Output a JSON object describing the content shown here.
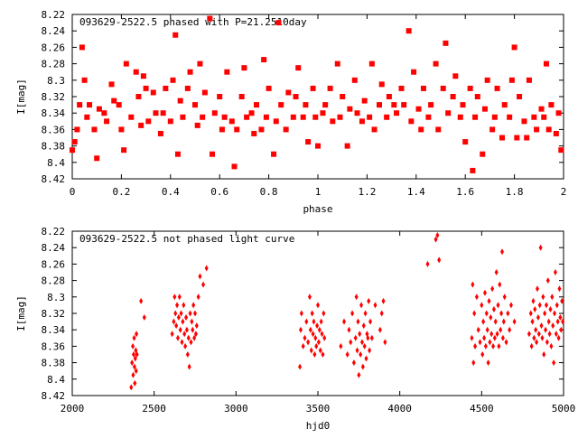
{
  "chart_data": [
    {
      "type": "scatter",
      "title": "093629-2522.5 phased with P=21.2510day",
      "xlabel": "phase",
      "ylabel": "I[mag]",
      "xlim": [
        0,
        2
      ],
      "ylim": [
        8.42,
        8.22
      ],
      "y_inverted": true,
      "xticks": [
        "0",
        "0.2",
        "0.4",
        "0.6",
        "0.8",
        "1",
        "1.2",
        "1.4",
        "1.6",
        "1.8",
        "2"
      ],
      "yticks": [
        "8.22",
        "8.24",
        "8.26",
        "8.28",
        "8.3",
        "8.32",
        "8.34",
        "8.36",
        "8.38",
        "8.4",
        "8.42"
      ],
      "marker": "filled-square",
      "color": "#ff0000",
      "points": [
        [
          0.0,
          8.385
        ],
        [
          0.01,
          8.375
        ],
        [
          0.02,
          8.36
        ],
        [
          0.03,
          8.33
        ],
        [
          0.04,
          8.26
        ],
        [
          0.05,
          8.3
        ],
        [
          0.06,
          8.345
        ],
        [
          0.07,
          8.33
        ],
        [
          0.09,
          8.36
        ],
        [
          0.1,
          8.395
        ],
        [
          0.11,
          8.335
        ],
        [
          0.13,
          8.34
        ],
        [
          0.14,
          8.35
        ],
        [
          0.16,
          8.305
        ],
        [
          0.17,
          8.325
        ],
        [
          0.19,
          8.33
        ],
        [
          0.2,
          8.36
        ],
        [
          0.21,
          8.385
        ],
        [
          0.22,
          8.28
        ],
        [
          0.24,
          8.345
        ],
        [
          0.26,
          8.29
        ],
        [
          0.27,
          8.32
        ],
        [
          0.28,
          8.355
        ],
        [
          0.29,
          8.295
        ],
        [
          0.3,
          8.31
        ],
        [
          0.31,
          8.35
        ],
        [
          0.33,
          8.315
        ],
        [
          0.34,
          8.34
        ],
        [
          0.36,
          8.365
        ],
        [
          0.37,
          8.34
        ],
        [
          0.38,
          8.31
        ],
        [
          0.4,
          8.35
        ],
        [
          0.41,
          8.3
        ],
        [
          0.42,
          8.245
        ],
        [
          0.43,
          8.39
        ],
        [
          0.44,
          8.325
        ],
        [
          0.45,
          8.345
        ],
        [
          0.47,
          8.31
        ],
        [
          0.48,
          8.29
        ],
        [
          0.5,
          8.33
        ],
        [
          0.51,
          8.355
        ],
        [
          0.52,
          8.28
        ],
        [
          0.53,
          8.345
        ],
        [
          0.54,
          8.315
        ],
        [
          0.56,
          8.225
        ],
        [
          0.57,
          8.39
        ],
        [
          0.58,
          8.34
        ],
        [
          0.6,
          8.32
        ],
        [
          0.61,
          8.36
        ],
        [
          0.62,
          8.345
        ],
        [
          0.63,
          8.29
        ],
        [
          0.65,
          8.35
        ],
        [
          0.66,
          8.405
        ],
        [
          0.67,
          8.36
        ],
        [
          0.69,
          8.32
        ],
        [
          0.7,
          8.285
        ],
        [
          0.71,
          8.345
        ],
        [
          0.73,
          8.34
        ],
        [
          0.74,
          8.365
        ],
        [
          0.75,
          8.33
        ],
        [
          0.77,
          8.36
        ],
        [
          0.78,
          8.275
        ],
        [
          0.79,
          8.345
        ],
        [
          0.8,
          8.31
        ],
        [
          0.82,
          8.39
        ],
        [
          0.83,
          8.35
        ],
        [
          0.84,
          8.23
        ],
        [
          0.85,
          8.33
        ],
        [
          0.87,
          8.36
        ],
        [
          0.88,
          8.315
        ],
        [
          0.9,
          8.345
        ],
        [
          0.91,
          8.32
        ],
        [
          0.92,
          8.285
        ],
        [
          0.94,
          8.345
        ],
        [
          0.95,
          8.33
        ],
        [
          0.96,
          8.375
        ],
        [
          0.98,
          8.31
        ],
        [
          0.99,
          8.345
        ],
        [
          1.0,
          8.38
        ],
        [
          1.02,
          8.34
        ],
        [
          1.03,
          8.33
        ],
        [
          1.05,
          8.31
        ],
        [
          1.06,
          8.35
        ],
        [
          1.08,
          8.28
        ],
        [
          1.09,
          8.345
        ],
        [
          1.1,
          8.32
        ],
        [
          1.12,
          8.38
        ],
        [
          1.13,
          8.335
        ],
        [
          1.15,
          8.3
        ],
        [
          1.16,
          8.34
        ],
        [
          1.18,
          8.35
        ],
        [
          1.19,
          8.325
        ],
        [
          1.21,
          8.345
        ],
        [
          1.22,
          8.28
        ],
        [
          1.23,
          8.36
        ],
        [
          1.25,
          8.33
        ],
        [
          1.26,
          8.305
        ],
        [
          1.28,
          8.345
        ],
        [
          1.29,
          8.32
        ],
        [
          1.31,
          8.33
        ],
        [
          1.32,
          8.34
        ],
        [
          1.34,
          8.31
        ],
        [
          1.35,
          8.33
        ],
        [
          1.37,
          8.24
        ],
        [
          1.38,
          8.35
        ],
        [
          1.39,
          8.29
        ],
        [
          1.41,
          8.335
        ],
        [
          1.42,
          8.36
        ],
        [
          1.43,
          8.31
        ],
        [
          1.45,
          8.345
        ],
        [
          1.46,
          8.33
        ],
        [
          1.48,
          8.28
        ],
        [
          1.49,
          8.36
        ],
        [
          1.51,
          8.31
        ],
        [
          1.52,
          8.255
        ],
        [
          1.53,
          8.34
        ],
        [
          1.55,
          8.32
        ],
        [
          1.56,
          8.295
        ],
        [
          1.58,
          8.345
        ],
        [
          1.59,
          8.33
        ],
        [
          1.6,
          8.375
        ],
        [
          1.62,
          8.31
        ],
        [
          1.63,
          8.41
        ],
        [
          1.64,
          8.345
        ],
        [
          1.65,
          8.32
        ],
        [
          1.67,
          8.39
        ],
        [
          1.68,
          8.335
        ],
        [
          1.69,
          8.3
        ],
        [
          1.71,
          8.36
        ],
        [
          1.72,
          8.345
        ],
        [
          1.73,
          8.31
        ],
        [
          1.75,
          8.37
        ],
        [
          1.76,
          8.33
        ],
        [
          1.78,
          8.345
        ],
        [
          1.79,
          8.3
        ],
        [
          1.8,
          8.26
        ],
        [
          1.81,
          8.37
        ],
        [
          1.82,
          8.32
        ],
        [
          1.84,
          8.35
        ],
        [
          1.85,
          8.37
        ],
        [
          1.86,
          8.3
        ],
        [
          1.88,
          8.345
        ],
        [
          1.89,
          8.36
        ],
        [
          1.91,
          8.335
        ],
        [
          1.92,
          8.345
        ],
        [
          1.93,
          8.28
        ],
        [
          1.94,
          8.36
        ],
        [
          1.95,
          8.33
        ],
        [
          1.97,
          8.365
        ],
        [
          1.98,
          8.34
        ],
        [
          1.99,
          8.385
        ]
      ]
    },
    {
      "type": "scatter",
      "title": "093629-2522.5 not phased light curve",
      "xlabel": "hjd0",
      "ylabel": "I[mag]",
      "xlim": [
        2000,
        5000
      ],
      "ylim": [
        8.42,
        8.22
      ],
      "y_inverted": true,
      "xticks": [
        "2000",
        "2500",
        "3000",
        "3500",
        "4000",
        "4500",
        "5000"
      ],
      "yticks": [
        "8.22",
        "8.24",
        "8.26",
        "8.28",
        "8.3",
        "8.32",
        "8.34",
        "8.36",
        "8.38",
        "8.4",
        "8.42"
      ],
      "marker": "diamond",
      "color": "#ff0000",
      "points": [
        [
          2360,
          8.41
        ],
        [
          2365,
          8.38
        ],
        [
          2370,
          8.36
        ],
        [
          2372,
          8.395
        ],
        [
          2375,
          8.37
        ],
        [
          2378,
          8.35
        ],
        [
          2380,
          8.385
        ],
        [
          2382,
          8.405
        ],
        [
          2385,
          8.375
        ],
        [
          2388,
          8.365
        ],
        [
          2390,
          8.39
        ],
        [
          2392,
          8.345
        ],
        [
          2395,
          8.37
        ],
        [
          2420,
          8.305
        ],
        [
          2440,
          8.325
        ],
        [
          2610,
          8.345
        ],
        [
          2620,
          8.33
        ],
        [
          2625,
          8.3
        ],
        [
          2630,
          8.32
        ],
        [
          2635,
          8.335
        ],
        [
          2640,
          8.31
        ],
        [
          2645,
          8.35
        ],
        [
          2650,
          8.325
        ],
        [
          2655,
          8.3
        ],
        [
          2660,
          8.34
        ],
        [
          2665,
          8.32
        ],
        [
          2670,
          8.355
        ],
        [
          2675,
          8.33
        ],
        [
          2680,
          8.31
        ],
        [
          2685,
          8.345
        ],
        [
          2690,
          8.36
        ],
        [
          2695,
          8.325
        ],
        [
          2700,
          8.34
        ],
        [
          2705,
          8.37
        ],
        [
          2710,
          8.35
        ],
        [
          2715,
          8.385
        ],
        [
          2720,
          8.32
        ],
        [
          2725,
          8.355
        ],
        [
          2730,
          8.33
        ],
        [
          2735,
          8.34
        ],
        [
          2740,
          8.31
        ],
        [
          2745,
          8.35
        ],
        [
          2750,
          8.32
        ],
        [
          2755,
          8.345
        ],
        [
          2760,
          8.335
        ],
        [
          2770,
          8.3
        ],
        [
          2780,
          8.275
        ],
        [
          2800,
          8.285
        ],
        [
          2820,
          8.265
        ],
        [
          3390,
          8.385
        ],
        [
          3395,
          8.34
        ],
        [
          3400,
          8.32
        ],
        [
          3410,
          8.36
        ],
        [
          3420,
          8.35
        ],
        [
          3430,
          8.33
        ],
        [
          3440,
          8.355
        ],
        [
          3450,
          8.3
        ],
        [
          3455,
          8.34
        ],
        [
          3460,
          8.365
        ],
        [
          3465,
          8.32
        ],
        [
          3470,
          8.345
        ],
        [
          3475,
          8.33
        ],
        [
          3480,
          8.37
        ],
        [
          3485,
          8.35
        ],
        [
          3490,
          8.36
        ],
        [
          3495,
          8.335
        ],
        [
          3500,
          8.31
        ],
        [
          3505,
          8.355
        ],
        [
          3510,
          8.34
        ],
        [
          3515,
          8.365
        ],
        [
          3520,
          8.33
        ],
        [
          3525,
          8.345
        ],
        [
          3530,
          8.37
        ],
        [
          3535,
          8.32
        ],
        [
          3540,
          8.35
        ],
        [
          3640,
          8.36
        ],
        [
          3660,
          8.33
        ],
        [
          3680,
          8.37
        ],
        [
          3690,
          8.34
        ],
        [
          3700,
          8.355
        ],
        [
          3710,
          8.32
        ],
        [
          3720,
          8.38
        ],
        [
          3730,
          8.35
        ],
        [
          3735,
          8.3
        ],
        [
          3740,
          8.365
        ],
        [
          3745,
          8.33
        ],
        [
          3750,
          8.395
        ],
        [
          3755,
          8.345
        ],
        [
          3760,
          8.37
        ],
        [
          3765,
          8.31
        ],
        [
          3770,
          8.355
        ],
        [
          3775,
          8.385
        ],
        [
          3780,
          8.335
        ],
        [
          3785,
          8.36
        ],
        [
          3790,
          8.32
        ],
        [
          3795,
          8.375
        ],
        [
          3800,
          8.345
        ],
        [
          3805,
          8.35
        ],
        [
          3810,
          8.305
        ],
        [
          3815,
          8.365
        ],
        [
          3820,
          8.33
        ],
        [
          3830,
          8.35
        ],
        [
          3850,
          8.31
        ],
        [
          3880,
          8.34
        ],
        [
          3890,
          8.32
        ],
        [
          3900,
          8.305
        ],
        [
          3910,
          8.355
        ],
        [
          4170,
          8.26
        ],
        [
          4220,
          8.23
        ],
        [
          4230,
          8.225
        ],
        [
          4240,
          8.255
        ],
        [
          4440,
          8.35
        ],
        [
          4445,
          8.285
        ],
        [
          4450,
          8.38
        ],
        [
          4455,
          8.32
        ],
        [
          4460,
          8.36
        ],
        [
          4470,
          8.3
        ],
        [
          4480,
          8.34
        ],
        [
          4490,
          8.355
        ],
        [
          4500,
          8.31
        ],
        [
          4505,
          8.37
        ],
        [
          4510,
          8.33
        ],
        [
          4515,
          8.35
        ],
        [
          4520,
          8.295
        ],
        [
          4525,
          8.36
        ],
        [
          4530,
          8.32
        ],
        [
          4535,
          8.34
        ],
        [
          4540,
          8.38
        ],
        [
          4545,
          8.305
        ],
        [
          4550,
          8.355
        ],
        [
          4555,
          8.325
        ],
        [
          4560,
          8.345
        ],
        [
          4565,
          8.29
        ],
        [
          4570,
          8.36
        ],
        [
          4575,
          8.315
        ],
        [
          4580,
          8.35
        ],
        [
          4585,
          8.33
        ],
        [
          4590,
          8.27
        ],
        [
          4595,
          8.345
        ],
        [
          4600,
          8.31
        ],
        [
          4605,
          8.36
        ],
        [
          4610,
          8.285
        ],
        [
          4615,
          8.34
        ],
        [
          4620,
          8.32
        ],
        [
          4625,
          8.245
        ],
        [
          4630,
          8.35
        ],
        [
          4635,
          8.33
        ],
        [
          4640,
          8.3
        ],
        [
          4650,
          8.355
        ],
        [
          4660,
          8.32
        ],
        [
          4670,
          8.34
        ],
        [
          4680,
          8.31
        ],
        [
          4700,
          8.33
        ],
        [
          4790,
          8.345
        ],
        [
          4800,
          8.32
        ],
        [
          4805,
          8.36
        ],
        [
          4810,
          8.33
        ],
        [
          4815,
          8.305
        ],
        [
          4820,
          8.35
        ],
        [
          4825,
          8.315
        ],
        [
          4830,
          8.34
        ],
        [
          4835,
          8.355
        ],
        [
          4840,
          8.29
        ],
        [
          4845,
          8.325
        ],
        [
          4850,
          8.345
        ],
        [
          4855,
          8.31
        ],
        [
          4860,
          8.24
        ],
        [
          4865,
          8.335
        ],
        [
          4870,
          8.35
        ],
        [
          4875,
          8.3
        ],
        [
          4880,
          8.37
        ],
        [
          4885,
          8.32
        ],
        [
          4890,
          8.34
        ],
        [
          4895,
          8.31
        ],
        [
          4900,
          8.355
        ],
        [
          4905,
          8.28
        ],
        [
          4910,
          8.33
        ],
        [
          4915,
          8.345
        ],
        [
          4920,
          8.315
        ],
        [
          4925,
          8.36
        ],
        [
          4930,
          8.3
        ],
        [
          4935,
          8.335
        ],
        [
          4940,
          8.38
        ],
        [
          4945,
          8.32
        ],
        [
          4950,
          8.27
        ],
        [
          4955,
          8.345
        ],
        [
          4960,
          8.31
        ],
        [
          4965,
          8.33
        ],
        [
          4970,
          8.35
        ],
        [
          4975,
          8.29
        ],
        [
          4980,
          8.325
        ],
        [
          4985,
          8.34
        ],
        [
          4990,
          8.305
        ],
        [
          4995,
          8.33
        ]
      ]
    }
  ]
}
